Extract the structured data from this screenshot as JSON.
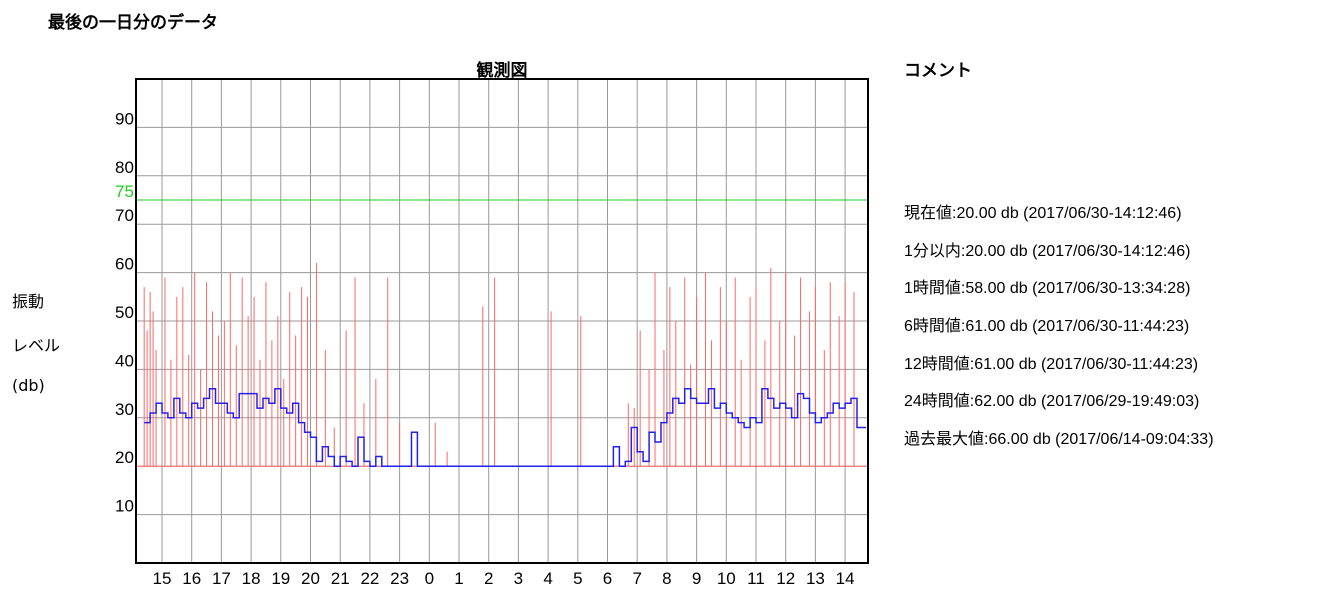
{
  "page_title": "最後の一日分のデータ",
  "comment_title": "コメント",
  "ylabel_lines": [
    "振動",
    "レベル",
    "(db)"
  ],
  "comments": [
    "現在値:20.00 db (2017/06/30-14:12:46)",
    "1分以内:20.00 db (2017/06/30-14:12:46)",
    "1時間値:58.00 db (2017/06/30-13:34:28)",
    "6時間値:61.00 db (2017/06/30-11:44:23)",
    "12時間値:61.00 db (2017/06/30-11:44:23)",
    "24時間値:62.00 db (2017/06/29-19:49:03)",
    "過去最大値:66.00 db (2017/06/14-09:04:33)"
  ],
  "chart_data": {
    "type": "line",
    "title": "観測図",
    "ylabel": "振動 レベル (db)",
    "ylim": [
      0,
      100
    ],
    "y_ticks": [
      "10",
      "20",
      "30",
      "40",
      "50",
      "60",
      "70",
      "75",
      "80",
      "90"
    ],
    "threshold": {
      "value": 75,
      "color": "#22cc22"
    },
    "x_hours": [
      "15",
      "16",
      "17",
      "18",
      "19",
      "20",
      "21",
      "22",
      "23",
      "0",
      "1",
      "2",
      "3",
      "4",
      "5",
      "6",
      "7",
      "8",
      "9",
      "10",
      "11",
      "12",
      "13",
      "14"
    ],
    "grid": true,
    "colors": {
      "peak": "#ff6666",
      "average": "#2222ee",
      "grid": "#9a9a9a"
    },
    "series": [
      {
        "key": "average",
        "color": "#2222ee",
        "x": [
          -0.6,
          -0.4,
          -0.2,
          0,
          0.2,
          0.4,
          0.6,
          0.8,
          1.0,
          1.2,
          1.4,
          1.6,
          1.8,
          2.0,
          2.2,
          2.4,
          2.6,
          2.8,
          3.0,
          3.2,
          3.4,
          3.6,
          3.8,
          4.0,
          4.2,
          4.4,
          4.6,
          4.8,
          5.0,
          5.2,
          5.4,
          5.6,
          5.8,
          6.0,
          6.2,
          6.4,
          6.6,
          6.8,
          7.0,
          7.2,
          7.4,
          7.6,
          7.8,
          8.0,
          8.2,
          8.4,
          8.6,
          8.8,
          9.0,
          15.0,
          15.2,
          15.4,
          15.6,
          15.8,
          16.0,
          16.2,
          16.4,
          16.6,
          16.8,
          17.0,
          17.2,
          17.4,
          17.6,
          17.8,
          18.0,
          18.2,
          18.4,
          18.6,
          18.8,
          19.0,
          19.2,
          19.4,
          19.6,
          19.8,
          20.0,
          20.2,
          20.4,
          20.6,
          20.8,
          21.0,
          21.2,
          21.4,
          21.6,
          21.8,
          22.0,
          22.2,
          22.4,
          22.6,
          22.8,
          23.0,
          23.2,
          23.4
        ],
        "values": [
          29,
          31,
          33,
          31,
          30,
          34,
          31,
          30,
          33,
          32,
          34,
          36,
          33,
          33,
          31,
          30,
          35,
          35,
          35,
          32,
          34,
          33,
          36,
          32,
          31,
          33,
          29,
          27,
          26,
          21,
          24,
          22,
          20,
          22,
          21,
          20,
          26,
          21,
          20,
          22,
          20,
          20,
          20,
          20,
          20,
          27,
          20,
          20,
          20,
          20,
          24,
          20,
          21,
          28,
          23,
          21,
          27,
          25,
          29,
          31,
          34,
          33,
          36,
          34,
          33,
          33,
          36,
          32,
          33,
          31,
          30,
          29,
          28,
          30,
          29,
          36,
          34,
          32,
          33,
          32,
          30,
          35,
          34,
          31,
          29,
          30,
          31,
          33,
          32,
          33,
          34,
          28
        ]
      },
      {
        "key": "peak",
        "color": "#ff6666",
        "x": [
          -0.6,
          -0.5,
          -0.4,
          -0.3,
          -0.2,
          0.1,
          0.3,
          0.5,
          0.7,
          0.9,
          1.1,
          1.3,
          1.5,
          1.7,
          1.9,
          2.1,
          2.3,
          2.5,
          2.7,
          2.9,
          3.1,
          3.3,
          3.5,
          3.7,
          3.9,
          4.1,
          4.3,
          4.5,
          4.7,
          4.9,
          5.2,
          5.5,
          5.8,
          6.2,
          6.5,
          6.8,
          7.2,
          7.6,
          8.0,
          9.2,
          9.6,
          10.8,
          11.2,
          13.1,
          14.1,
          15.4,
          15.7,
          15.9,
          16.1,
          16.4,
          16.6,
          16.9,
          17.1,
          17.3,
          17.6,
          17.8,
          18.0,
          18.3,
          18.5,
          18.8,
          19.0,
          19.3,
          19.5,
          19.8,
          20.0,
          20.3,
          20.5,
          20.8,
          21.0,
          21.3,
          21.5,
          21.8,
          22.0,
          22.3,
          22.5,
          22.8,
          23.0,
          23.3
        ],
        "values": [
          57,
          48,
          56,
          52,
          44,
          59,
          42,
          55,
          57,
          43,
          60,
          40,
          58,
          52,
          47,
          50,
          60,
          45,
          59,
          51,
          55,
          42,
          58,
          46,
          51,
          38,
          56,
          47,
          57,
          55,
          62,
          44,
          28,
          48,
          59,
          33,
          38,
          59,
          29,
          29,
          23,
          53,
          59,
          52,
          51,
          24,
          33,
          32,
          48,
          40,
          60,
          44,
          57,
          50,
          59,
          41,
          55,
          60,
          46,
          57,
          50,
          59,
          42,
          55,
          57,
          46,
          61,
          50,
          60,
          47,
          59,
          52,
          57,
          44,
          58,
          51,
          58,
          56
        ]
      }
    ]
  }
}
